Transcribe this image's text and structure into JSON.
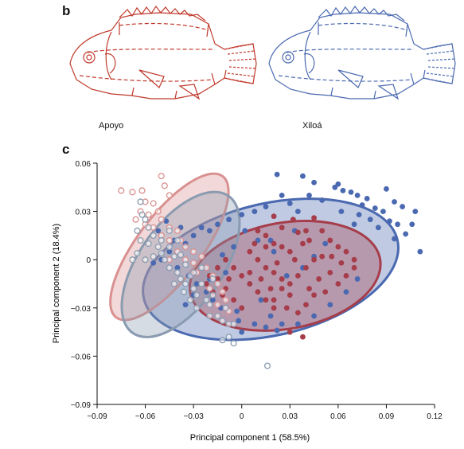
{
  "panels": {
    "b_label": "b",
    "c_label": "c"
  },
  "fish": {
    "apoyo": {
      "caption": "Apoyo",
      "color": "#c0392b"
    },
    "xiloa": {
      "caption": "Xiloá",
      "color": "#4a69b0"
    }
  },
  "chart_data": {
    "type": "scatter",
    "xlabel": "Principal component 1 (58.5%)",
    "ylabel": "Principal component 2 (18.4%)",
    "xlim": [
      -0.09,
      0.12
    ],
    "ylim": [
      -0.09,
      0.06
    ],
    "xticks": [
      -0.09,
      -0.06,
      -0.03,
      0,
      0.03,
      0.06,
      0.09,
      0.12
    ],
    "yticks": [
      -0.09,
      -0.06,
      -0.03,
      0,
      0.03,
      0.06
    ],
    "xtick_labels": [
      "−0.09",
      "−0.06",
      "−0.03",
      "0",
      "0.03",
      "0.06",
      "0.09",
      "0.12"
    ],
    "ytick_labels": [
      "−0.09",
      "−0.06",
      "−0.03",
      "0",
      "0.03",
      "0.06"
    ],
    "grid": false,
    "series": [
      {
        "color": "#4a69b0",
        "marker": "filled",
        "ellipse": {
          "cx": 0.018,
          "cy": -0.006,
          "rx": 0.081,
          "ry": 0.041,
          "angle": 13
        },
        "points": [
          [
            0.022,
            0.053
          ],
          [
            0.038,
            0.052
          ],
          [
            0.045,
            0.048
          ],
          [
            0.06,
            0.047
          ],
          [
            0.058,
            0.045
          ],
          [
            0.063,
            0.043
          ],
          [
            0.068,
            0.042
          ],
          [
            0.072,
            0.04
          ],
          [
            0.078,
            0.038
          ],
          [
            0.09,
            0.044
          ],
          [
            0.095,
            0.036
          ],
          [
            0.075,
            0.034
          ],
          [
            0.083,
            0.032
          ],
          [
            0.088,
            0.03
          ],
          [
            0.1,
            0.033
          ],
          [
            0.108,
            0.03
          ],
          [
            0.073,
            0.028
          ],
          [
            0.08,
            0.025
          ],
          [
            0.092,
            0.024
          ],
          [
            0.097,
            0.022
          ],
          [
            0.106,
            0.022
          ],
          [
            0.102,
            0.016
          ],
          [
            0.111,
            0.005
          ],
          [
            0.085,
            0.02
          ],
          [
            0.095,
            0.013
          ],
          [
            0.07,
            0.022
          ],
          [
            0.062,
            0.03
          ],
          [
            0.05,
            0.037
          ],
          [
            0.042,
            0.04
          ],
          [
            0.035,
            0.03
          ],
          [
            0.03,
            0.035
          ],
          [
            0.025,
            0.04
          ],
          [
            0.015,
            0.033
          ],
          [
            0.008,
            0.03
          ],
          [
            0.0,
            0.028
          ],
          [
            -0.008,
            0.025
          ],
          [
            -0.015,
            0.022
          ],
          [
            -0.02,
            0.018
          ],
          [
            -0.025,
            0.02
          ],
          [
            -0.03,
            0.015
          ],
          [
            -0.035,
            0.01
          ],
          [
            -0.042,
            0.012
          ],
          [
            -0.045,
            0.005
          ],
          [
            -0.05,
            0.0
          ],
          [
            -0.055,
            -0.002
          ],
          [
            -0.04,
            -0.005
          ],
          [
            -0.033,
            -0.01
          ],
          [
            -0.028,
            -0.015
          ],
          [
            -0.022,
            -0.02
          ],
          [
            -0.018,
            -0.025
          ],
          [
            -0.013,
            -0.03
          ],
          [
            -0.035,
            -0.028
          ],
          [
            -0.03,
            -0.022
          ],
          [
            -0.02,
            -0.012
          ],
          [
            -0.01,
            -0.008
          ],
          [
            0.005,
            -0.015
          ],
          [
            0.012,
            -0.025
          ],
          [
            0.018,
            -0.035
          ],
          [
            0.025,
            -0.04
          ],
          [
            0.035,
            -0.04
          ],
          [
            0.045,
            -0.035
          ],
          [
            0.055,
            -0.028
          ],
          [
            0.065,
            -0.02
          ],
          [
            0.072,
            -0.012
          ],
          [
            0.052,
            0.01
          ],
          [
            0.045,
            0.002
          ],
          [
            0.038,
            -0.005
          ],
          [
            0.028,
            -0.01
          ],
          [
            0.02,
            0.005
          ],
          [
            0.01,
            0.012
          ],
          [
            0.002,
            0.018
          ],
          [
            -0.005,
            0.008
          ],
          [
            -0.012,
            0.003
          ],
          [
            -0.038,
            0.02
          ],
          [
            -0.047,
            0.024
          ],
          [
            -0.052,
            0.018
          ],
          [
            0.018,
            0.012
          ],
          [
            0.033,
            0.018
          ],
          [
            0.015,
            -0.042
          ],
          [
            0.008,
            -0.04
          ],
          [
            -0.002,
            -0.038
          ],
          [
            0.022,
            -0.044
          ],
          [
            0.03,
            -0.045
          ],
          [
            0.0,
            -0.045
          ],
          [
            -0.003,
            -0.032
          ]
        ]
      },
      {
        "color": "#a63d4a",
        "marker": "filled",
        "ellipse": {
          "cx": 0.027,
          "cy": -0.01,
          "rx": 0.06,
          "ry": 0.033,
          "angle": 10
        },
        "points": [
          [
            0.02,
            0.027
          ],
          [
            0.032,
            0.025
          ],
          [
            0.045,
            0.026
          ],
          [
            0.01,
            0.018
          ],
          [
            0.015,
            0.015
          ],
          [
            0.025,
            0.02
          ],
          [
            0.035,
            0.017
          ],
          [
            0.05,
            0.018
          ],
          [
            0.055,
            0.012
          ],
          [
            0.06,
            0.008
          ],
          [
            0.065,
            0.005
          ],
          [
            0.07,
            0.0
          ],
          [
            0.062,
            -0.002
          ],
          [
            0.055,
            -0.008
          ],
          [
            0.06,
            -0.015
          ],
          [
            0.052,
            -0.02
          ],
          [
            0.045,
            -0.022
          ],
          [
            0.04,
            -0.028
          ],
          [
            0.035,
            -0.033
          ],
          [
            0.028,
            -0.03
          ],
          [
            0.02,
            -0.03
          ],
          [
            0.015,
            -0.025
          ],
          [
            0.01,
            -0.02
          ],
          [
            0.005,
            -0.015
          ],
          [
            0.0,
            -0.01
          ],
          [
            -0.005,
            -0.005
          ],
          [
            -0.01,
            0.0
          ],
          [
            -0.015,
            -0.005
          ],
          [
            -0.02,
            -0.01
          ],
          [
            -0.022,
            -0.015
          ],
          [
            -0.018,
            -0.02
          ],
          [
            -0.012,
            -0.022
          ],
          [
            -0.005,
            -0.025
          ],
          [
            0.0,
            -0.03
          ],
          [
            0.005,
            0.005
          ],
          [
            0.01,
            0.0
          ],
          [
            0.015,
            -0.005
          ],
          [
            0.02,
            -0.008
          ],
          [
            0.025,
            -0.012
          ],
          [
            0.03,
            -0.015
          ],
          [
            0.035,
            -0.01
          ],
          [
            0.04,
            -0.005
          ],
          [
            0.045,
            0.0
          ],
          [
            0.05,
            0.002
          ],
          [
            0.03,
            0.005
          ],
          [
            0.025,
            0.008
          ],
          [
            0.02,
            0.01
          ],
          [
            0.015,
            0.008
          ],
          [
            0.038,
            0.01
          ],
          [
            0.042,
            0.012
          ],
          [
            0.03,
            -0.022
          ],
          [
            0.025,
            -0.018
          ],
          [
            0.048,
            -0.012
          ],
          [
            0.056,
            0.002
          ],
          [
            0.012,
            -0.012
          ],
          [
            0.018,
            -0.018
          ],
          [
            0.005,
            -0.008
          ],
          [
            -0.008,
            -0.012
          ],
          [
            0.065,
            -0.01
          ],
          [
            0.07,
            -0.005
          ],
          [
            0.033,
            0.0
          ],
          [
            0.022,
            -0.002
          ],
          [
            0.04,
            0.018
          ],
          [
            0.02,
            -0.025
          ],
          [
            0.03,
            -0.045
          ],
          [
            0.038,
            -0.048
          ],
          [
            -0.01,
            -0.018
          ],
          [
            -0.015,
            -0.012
          ],
          [
            0.008,
            0.01
          ],
          [
            0.042,
            -0.018
          ]
        ]
      },
      {
        "color": "#d99090",
        "marker": "open",
        "ellipse": {
          "cx": -0.045,
          "cy": 0.008,
          "rx": 0.055,
          "ry": 0.02,
          "angle": 53
        },
        "points": [
          [
            -0.075,
            0.043
          ],
          [
            -0.068,
            0.042
          ],
          [
            -0.062,
            0.043
          ],
          [
            -0.05,
            0.052
          ],
          [
            -0.048,
            0.046
          ],
          [
            -0.045,
            0.04
          ],
          [
            -0.06,
            0.036
          ],
          [
            -0.055,
            0.035
          ],
          [
            -0.063,
            0.03
          ],
          [
            -0.066,
            0.025
          ],
          [
            -0.058,
            0.028
          ],
          [
            -0.052,
            0.03
          ],
          [
            -0.06,
            0.022
          ],
          [
            -0.055,
            0.02
          ],
          [
            -0.05,
            0.025
          ],
          [
            -0.045,
            0.02
          ],
          [
            -0.05,
            0.015
          ],
          [
            -0.045,
            0.012
          ],
          [
            -0.04,
            0.018
          ],
          [
            -0.038,
            0.012
          ],
          [
            -0.035,
            0.008
          ],
          [
            -0.04,
            0.005
          ],
          [
            -0.045,
            0.0
          ],
          [
            -0.035,
            0.0
          ],
          [
            -0.03,
            0.005
          ],
          [
            -0.03,
            -0.002
          ],
          [
            -0.025,
            0.002
          ],
          [
            -0.028,
            -0.008
          ],
          [
            -0.022,
            -0.005
          ],
          [
            -0.018,
            -0.01
          ],
          [
            -0.02,
            -0.018
          ],
          [
            -0.015,
            -0.015
          ],
          [
            -0.012,
            -0.02
          ],
          [
            -0.01,
            -0.025
          ],
          [
            -0.015,
            -0.028
          ],
          [
            -0.008,
            -0.032
          ]
        ]
      },
      {
        "color": "#8a9bb0",
        "marker": "open",
        "ellipse": {
          "cx": -0.038,
          "cy": -0.003,
          "rx": 0.052,
          "ry": 0.026,
          "angle": 55
        },
        "points": [
          [
            -0.063,
            0.036
          ],
          [
            -0.062,
            0.028
          ],
          [
            -0.06,
            0.025
          ],
          [
            -0.058,
            0.02
          ],
          [
            -0.065,
            0.018
          ],
          [
            -0.063,
            0.012
          ],
          [
            -0.058,
            0.01
          ],
          [
            -0.055,
            0.015
          ],
          [
            -0.052,
            0.008
          ],
          [
            -0.05,
            0.004
          ],
          [
            -0.055,
            0.002
          ],
          [
            -0.048,
            0.0
          ],
          [
            -0.045,
            -0.005
          ],
          [
            -0.042,
            0.002
          ],
          [
            -0.04,
            -0.008
          ],
          [
            -0.038,
            -0.012
          ],
          [
            -0.035,
            -0.015
          ],
          [
            -0.032,
            -0.01
          ],
          [
            -0.03,
            -0.018
          ],
          [
            -0.028,
            -0.022
          ],
          [
            -0.025,
            -0.015
          ],
          [
            -0.022,
            -0.025
          ],
          [
            -0.02,
            -0.028
          ],
          [
            -0.018,
            -0.022
          ],
          [
            -0.015,
            -0.035
          ],
          [
            -0.012,
            -0.038
          ],
          [
            -0.01,
            -0.03
          ],
          [
            -0.008,
            -0.04
          ],
          [
            -0.005,
            -0.04
          ],
          [
            -0.008,
            -0.048
          ],
          [
            -0.012,
            -0.05
          ],
          [
            -0.005,
            -0.052
          ],
          [
            0.016,
            -0.066
          ],
          [
            -0.045,
            0.018
          ],
          [
            -0.04,
            0.012
          ],
          [
            -0.038,
            0.003
          ],
          [
            -0.035,
            -0.003
          ],
          [
            -0.03,
            -0.008
          ],
          [
            -0.05,
            0.012
          ],
          [
            -0.068,
            0.0
          ],
          [
            -0.065,
            0.004
          ],
          [
            -0.06,
            0.0
          ],
          [
            -0.028,
            -0.03
          ],
          [
            -0.032,
            -0.025
          ],
          [
            -0.02,
            -0.035
          ],
          [
            -0.025,
            -0.005
          ],
          [
            -0.018,
            -0.012
          ],
          [
            -0.045,
            0.008
          ],
          [
            -0.042,
            -0.015
          ],
          [
            -0.036,
            -0.02
          ]
        ]
      }
    ]
  }
}
